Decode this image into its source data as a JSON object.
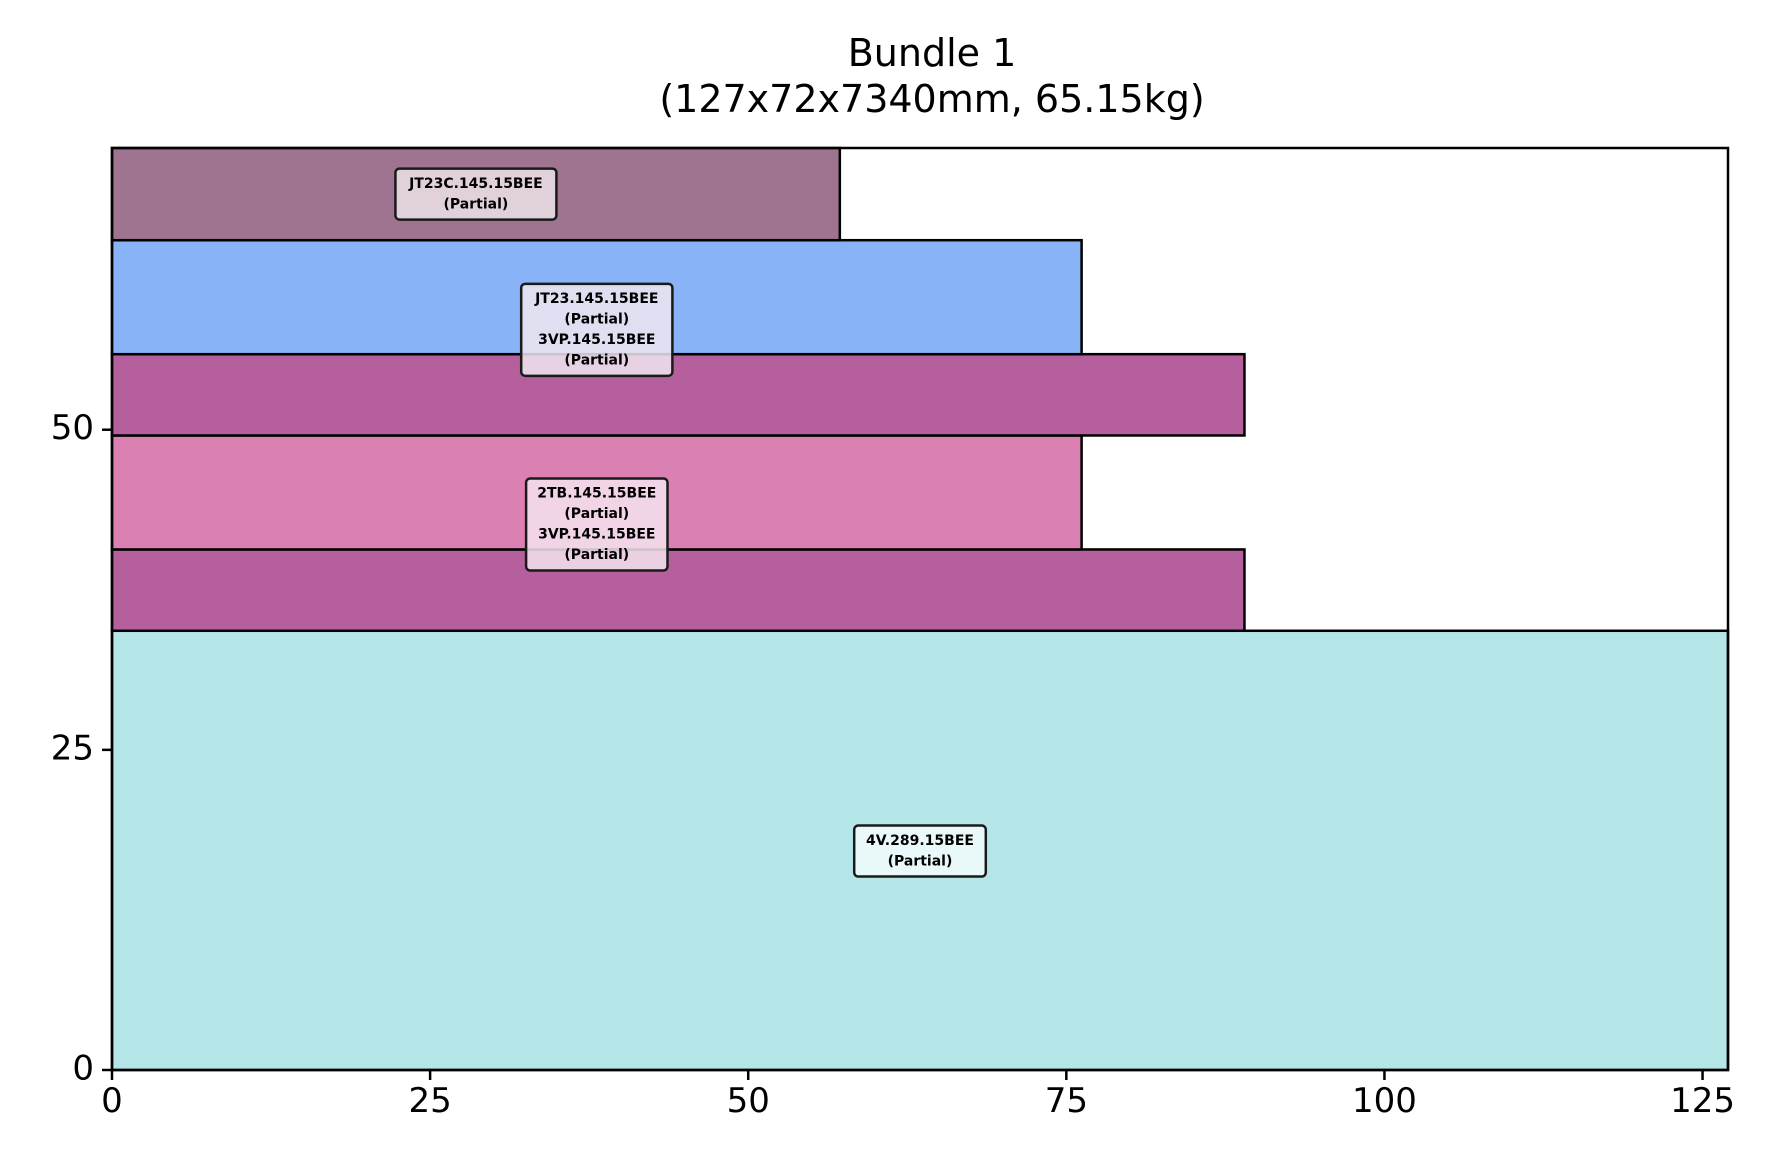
{
  "chart_data": {
    "type": "bar",
    "title": "Bundle 1",
    "subtitle": "(127x72x7340mm, 65.15kg)",
    "xlabel": "",
    "ylabel": "",
    "xlim": [
      0,
      127
    ],
    "ylim": [
      0,
      72
    ],
    "xticks": [
      "0",
      "25",
      "50",
      "75",
      "100",
      "125"
    ],
    "yticks": [
      "0",
      "25",
      "50"
    ],
    "grid": false,
    "rects": [
      {
        "x": 0,
        "y": 0,
        "w": 127,
        "h": 34.3,
        "color": "#b4e6e8"
      },
      {
        "x": 0,
        "y": 34.3,
        "w": 89,
        "h": 6.35,
        "color": "#b5609c"
      },
      {
        "x": 0,
        "y": 40.65,
        "w": 76.2,
        "h": 8.9,
        "color": "#da80b2"
      },
      {
        "x": 0,
        "y": 49.55,
        "w": 89,
        "h": 6.35,
        "color": "#b5609c"
      },
      {
        "x": 0,
        "y": 55.9,
        "w": 76.2,
        "h": 8.9,
        "color": "#88b3f7"
      },
      {
        "x": 0,
        "y": 64.8,
        "w": 57.2,
        "h": 7.2,
        "color": "#9e7490"
      }
    ],
    "labels": [
      {
        "x": 63.5,
        "y": 17.1,
        "lines": [
          "4V.289.15BEE",
          "(Partial)"
        ],
        "fill": "#f2fafb"
      },
      {
        "x": 38.1,
        "y": 42.6,
        "lines": [
          "2TB.145.15BEE",
          "(Partial)",
          "3VP.145.15BEE",
          "(Partial)"
        ],
        "fill": "#f4e4ee"
      },
      {
        "x": 38.1,
        "y": 57.8,
        "lines": [
          "JT23.145.15BEE",
          "(Partial)",
          "3VP.145.15BEE",
          "(Partial)"
        ],
        "fill": "#eee6f0"
      },
      {
        "x": 28.6,
        "y": 68.4,
        "lines": [
          "JT23C.145.15BEE",
          "(Partial)"
        ],
        "fill": "#ece2e8"
      }
    ]
  }
}
